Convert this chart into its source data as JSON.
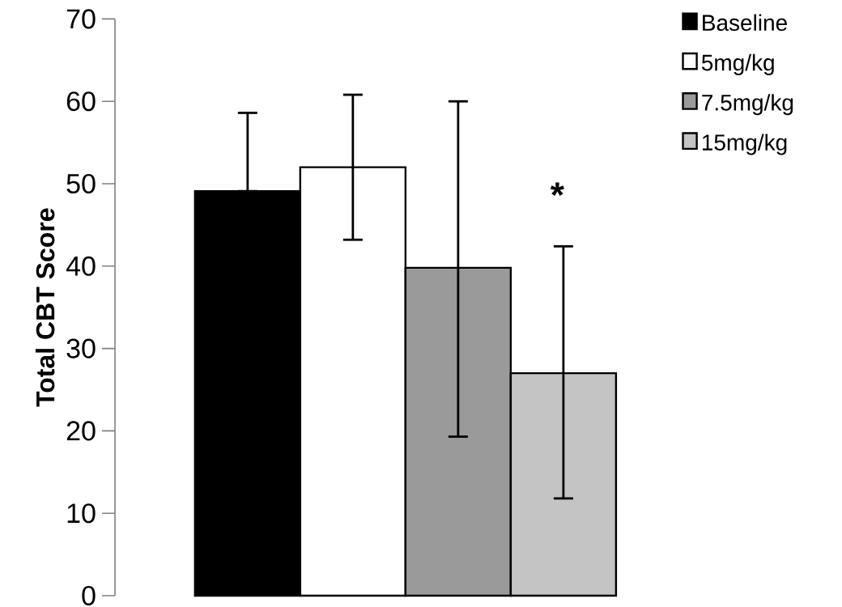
{
  "chart_data": {
    "type": "bar",
    "ylabel": "Total CBT Score",
    "categories": [
      null
    ],
    "series": [
      {
        "name": "Baseline",
        "color": "#000000",
        "values": [
          49.1
        ],
        "errors": [
          [
            49.1,
            58.6
          ]
        ]
      },
      {
        "name": "5mg/kg",
        "color": "#ffffff",
        "values": [
          52.0
        ],
        "errors": [
          [
            43.2,
            60.8
          ]
        ]
      },
      {
        "name": "7.5mg/kg",
        "color": "#9a9a9a",
        "values": [
          39.8
        ],
        "errors": [
          [
            19.3,
            60.0
          ]
        ]
      },
      {
        "name": "15mg/kg",
        "color": "#c4c4c4",
        "values": [
          27.0
        ],
        "errors": [
          [
            11.8,
            42.4
          ]
        ]
      }
    ],
    "ylim": [
      0,
      70
    ],
    "yticks": [
      0,
      10,
      20,
      30,
      40,
      50,
      60,
      70
    ],
    "legend": "right",
    "grid": false,
    "annotations": [
      "*"
    ]
  }
}
